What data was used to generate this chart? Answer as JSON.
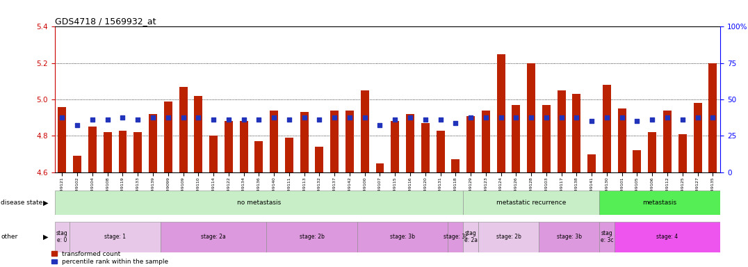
{
  "title": "GDS4718 / 1569932_at",
  "samples": [
    "GSM549121",
    "GSM549102",
    "GSM549104",
    "GSM549108",
    "GSM549119",
    "GSM549133",
    "GSM549139",
    "GSM549099",
    "GSM549109",
    "GSM549110",
    "GSM549114",
    "GSM549122",
    "GSM549134",
    "GSM549136",
    "GSM549140",
    "GSM549111",
    "GSM549113",
    "GSM549132",
    "GSM549137",
    "GSM549142",
    "GSM549100",
    "GSM549107",
    "GSM549115",
    "GSM549116",
    "GSM549120",
    "GSM549131",
    "GSM549118",
    "GSM549129",
    "GSM549123",
    "GSM549124",
    "GSM549126",
    "GSM549128",
    "GSM549103",
    "GSM549117",
    "GSM549138",
    "GSM549141",
    "GSM549130",
    "GSM549101",
    "GSM549105",
    "GSM549106",
    "GSM549112",
    "GSM549125",
    "GSM549127",
    "GSM549135"
  ],
  "bar_values": [
    4.96,
    4.69,
    4.85,
    4.82,
    4.83,
    4.82,
    4.92,
    4.99,
    5.07,
    5.02,
    4.8,
    4.88,
    4.88,
    4.77,
    4.94,
    4.79,
    4.93,
    4.74,
    4.94,
    4.94,
    5.05,
    4.65,
    4.88,
    4.92,
    4.87,
    4.83,
    4.67,
    4.91,
    4.94,
    5.25,
    4.97,
    5.2,
    4.97,
    5.05,
    5.03,
    4.7,
    5.08,
    4.95,
    4.72,
    4.82,
    4.94,
    4.81,
    4.98,
    5.2
  ],
  "dot_values": [
    4.9,
    4.86,
    4.89,
    4.89,
    4.9,
    4.89,
    4.9,
    4.9,
    4.9,
    4.9,
    4.89,
    4.89,
    4.89,
    4.89,
    4.9,
    4.89,
    4.9,
    4.89,
    4.9,
    4.9,
    4.9,
    4.86,
    4.89,
    4.9,
    4.89,
    4.89,
    4.87,
    4.9,
    4.9,
    4.9,
    4.9,
    4.9,
    4.9,
    4.9,
    4.9,
    4.88,
    4.9,
    4.9,
    4.88,
    4.89,
    4.9,
    4.89,
    4.9,
    4.9
  ],
  "y_min": 4.6,
  "y_max": 5.4,
  "y_ticks": [
    4.6,
    4.8,
    5.0,
    5.2,
    5.4
  ],
  "y2_ticks_vals": [
    0,
    25,
    50,
    75,
    100
  ],
  "y2_ticks_labels": [
    "0",
    "25",
    "50",
    "75",
    "100%"
  ],
  "bar_color": "#BB2200",
  "dot_color": "#2233BB",
  "disease_state_row": [
    {
      "label": "no metastasis",
      "start": 0,
      "end": 27,
      "color": "#c8eec8"
    },
    {
      "label": "metastatic recurrence",
      "start": 27,
      "end": 36,
      "color": "#c8eec8"
    },
    {
      "label": "metastasis",
      "start": 36,
      "end": 44,
      "color": "#55ee55"
    }
  ],
  "other_row": [
    {
      "label": "stag\ne: 0",
      "start": 0,
      "end": 1,
      "color": "#e8c8e8"
    },
    {
      "label": "stage: 1",
      "start": 1,
      "end": 7,
      "color": "#e8c8e8"
    },
    {
      "label": "stage: 2a",
      "start": 7,
      "end": 14,
      "color": "#dd99dd"
    },
    {
      "label": "stage: 2b",
      "start": 14,
      "end": 20,
      "color": "#dd99dd"
    },
    {
      "label": "stage: 3b",
      "start": 20,
      "end": 26,
      "color": "#dd99dd"
    },
    {
      "label": "stage: 3c",
      "start": 26,
      "end": 27,
      "color": "#dd99dd"
    },
    {
      "label": "stag\ne: 2a",
      "start": 27,
      "end": 28,
      "color": "#e8c8e8"
    },
    {
      "label": "stage: 2b",
      "start": 28,
      "end": 32,
      "color": "#e8c8e8"
    },
    {
      "label": "stage: 3b",
      "start": 32,
      "end": 36,
      "color": "#dd99dd"
    },
    {
      "label": "stag\ne: 3c",
      "start": 36,
      "end": 37,
      "color": "#dd99dd"
    },
    {
      "label": "stage: 4",
      "start": 37,
      "end": 44,
      "color": "#ee55ee"
    }
  ],
  "legend": [
    {
      "label": "transformed count",
      "color": "#BB2200"
    },
    {
      "label": "percentile rank within the sample",
      "color": "#2233BB"
    }
  ]
}
